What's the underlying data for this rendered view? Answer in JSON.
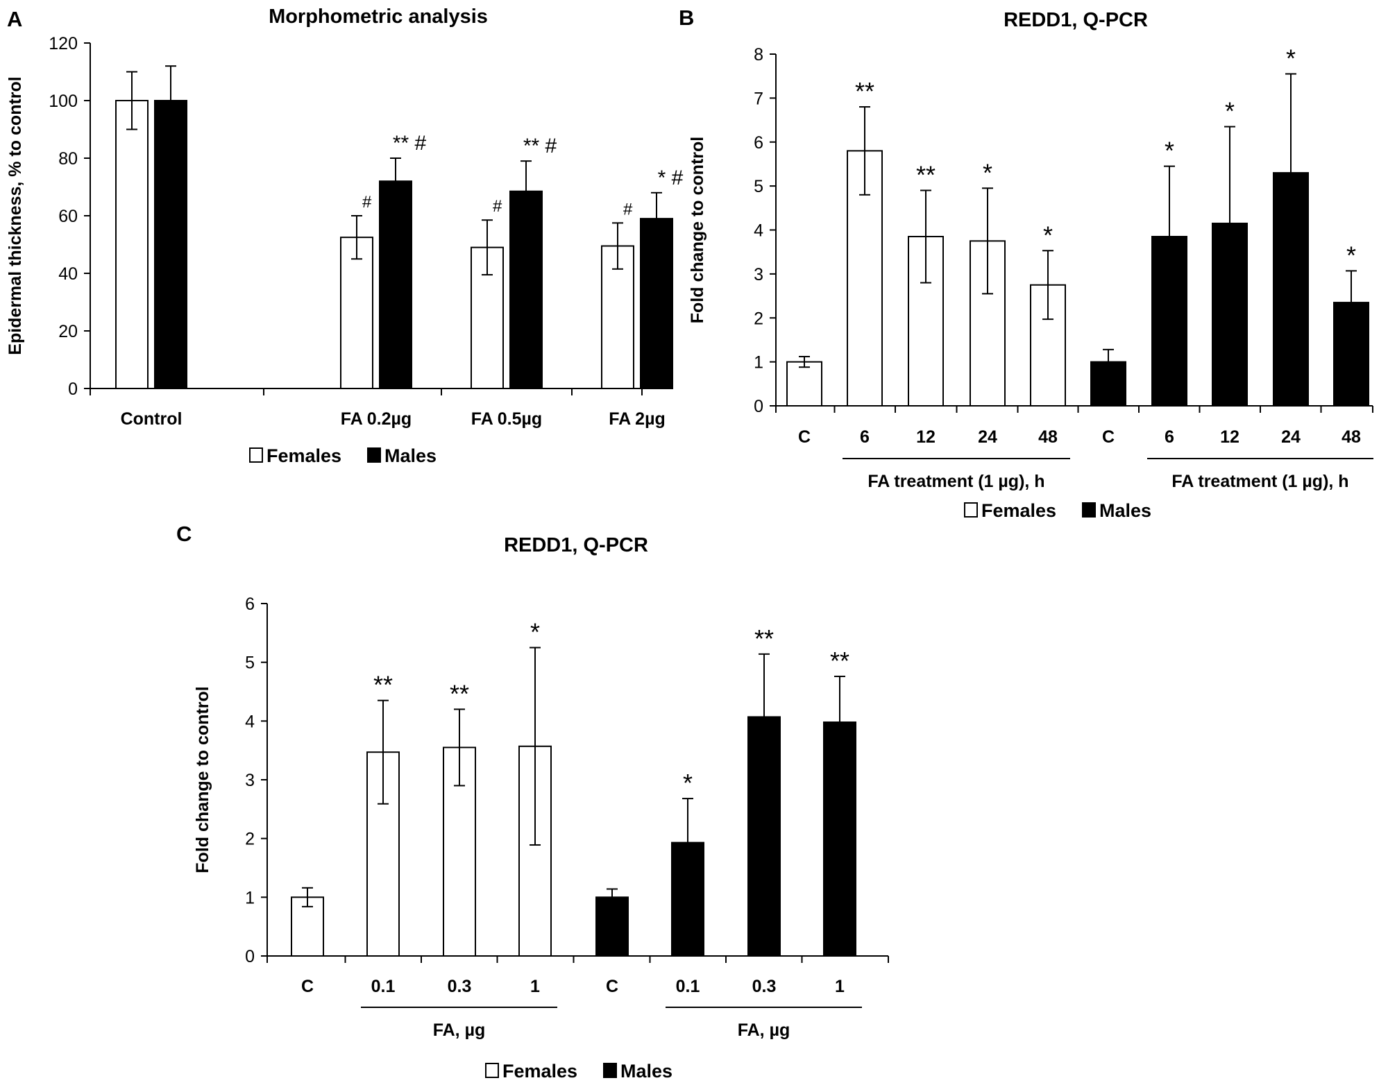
{
  "chart_data": [
    {
      "panel_label": "A",
      "type": "bar",
      "title": "Morphometric analysis",
      "ylabel": "Epidermal thickness, % to  control",
      "xlabel": "",
      "ylim": [
        0,
        120
      ],
      "yticks": [
        0,
        20,
        40,
        60,
        80,
        100,
        120
      ],
      "grid": false,
      "categories": [
        "Control",
        "FA 0.2µg",
        "FA 0.5µg",
        "FA 2µg"
      ],
      "series": [
        {
          "name": "Females",
          "fill": "#ffffff",
          "values": [
            100,
            52.5,
            49,
            49.5
          ],
          "errors": [
            10,
            7.5,
            9.5,
            8
          ],
          "annotations": [
            "",
            "#",
            "#",
            "#"
          ]
        },
        {
          "name": "Males",
          "fill": "#000000",
          "values": [
            100,
            72,
            68.5,
            59
          ],
          "errors": [
            12,
            8,
            10.5,
            9
          ],
          "annotations": [
            "",
            "** #",
            "** #",
            "* #"
          ]
        }
      ],
      "legend": {
        "position": "bottom",
        "items": [
          {
            "label": "Females",
            "fill": "#ffffff"
          },
          {
            "label": "Males",
            "fill": "#000000"
          }
        ]
      }
    },
    {
      "panel_label": "B",
      "type": "bar",
      "title": "REDD1, Q-PCR",
      "ylabel": "Fold change to control",
      "ylim": [
        0,
        8
      ],
      "yticks": [
        0,
        1,
        2,
        3,
        4,
        5,
        6,
        7,
        8
      ],
      "grid": false,
      "categories": [
        "C",
        "6",
        "12",
        "24",
        "48",
        "C",
        "6",
        "12",
        "24",
        "48"
      ],
      "values": [
        1.0,
        5.8,
        3.85,
        3.75,
        2.75,
        1.0,
        3.85,
        4.15,
        5.3,
        2.35
      ],
      "errors": [
        0.12,
        1.0,
        1.05,
        1.2,
        0.78,
        0.28,
        1.6,
        2.2,
        2.25,
        0.72
      ],
      "fills": [
        "#ffffff",
        "#ffffff",
        "#ffffff",
        "#ffffff",
        "#ffffff",
        "#000000",
        "#000000",
        "#000000",
        "#000000",
        "#000000"
      ],
      "annotations": [
        "",
        "**",
        "**",
        "*",
        "*",
        "",
        "*",
        "*",
        "*",
        "*"
      ],
      "group_labels": [
        {
          "label": "FA treatment (1 µg), h",
          "from": 1,
          "to": 4
        },
        {
          "label": "FA treatment (1 µg), h",
          "from": 6,
          "to": 9
        }
      ],
      "legend": {
        "position": "bottom",
        "items": [
          {
            "label": "Females",
            "fill": "#ffffff"
          },
          {
            "label": "Males",
            "fill": "#000000"
          }
        ]
      }
    },
    {
      "panel_label": "C",
      "type": "bar",
      "title": "REDD1, Q-PCR",
      "ylabel": "Fold change to control",
      "ylim": [
        0,
        6
      ],
      "yticks": [
        0,
        1,
        2,
        3,
        4,
        5,
        6
      ],
      "grid": false,
      "categories": [
        "C",
        "0.1",
        "0.3",
        "1",
        "C",
        "0.1",
        "0.3",
        "1"
      ],
      "values": [
        1.0,
        3.47,
        3.55,
        3.57,
        1.0,
        1.93,
        4.07,
        3.98
      ],
      "errors": [
        0.16,
        0.88,
        0.65,
        1.68,
        0.14,
        0.75,
        1.07,
        0.78
      ],
      "fills": [
        "#ffffff",
        "#ffffff",
        "#ffffff",
        "#ffffff",
        "#000000",
        "#000000",
        "#000000",
        "#000000"
      ],
      "annotations": [
        "",
        "**",
        "**",
        "*",
        "",
        "*",
        "**",
        "**"
      ],
      "group_labels": [
        {
          "label": "FA, µg",
          "from": 1,
          "to": 3
        },
        {
          "label": "FA, µg",
          "from": 5,
          "to": 7
        }
      ],
      "legend": {
        "position": "bottom",
        "items": [
          {
            "label": "Females",
            "fill": "#ffffff"
          },
          {
            "label": "Males",
            "fill": "#000000"
          }
        ]
      }
    }
  ]
}
